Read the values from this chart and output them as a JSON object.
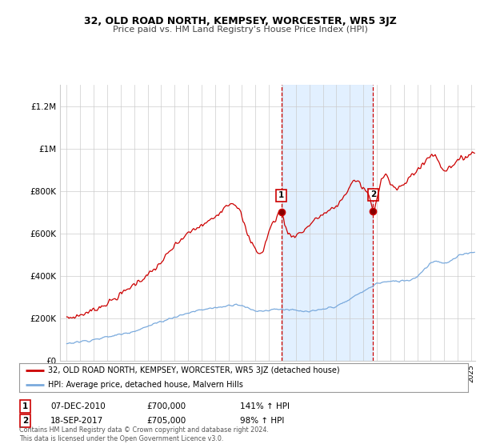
{
  "title": "32, OLD ROAD NORTH, KEMPSEY, WORCESTER, WR5 3JZ",
  "subtitle": "Price paid vs. HM Land Registry's House Price Index (HPI)",
  "ylabel_ticks": [
    "£0",
    "£200K",
    "£400K",
    "£600K",
    "£800K",
    "£1M",
    "£1.2M"
  ],
  "ytick_vals": [
    0,
    200000,
    400000,
    600000,
    800000,
    1000000,
    1200000
  ],
  "ylim": [
    0,
    1300000
  ],
  "xlim_start": 1994.5,
  "xlim_end": 2025.3,
  "shaded_region": [
    2010.92,
    2017.72
  ],
  "vline1_x": 2010.92,
  "vline2_x": 2017.72,
  "marker1_x": 2010.92,
  "marker1_y_red": 700000,
  "marker2_x": 2017.72,
  "marker2_y_red": 705000,
  "legend_label_red": "32, OLD ROAD NORTH, KEMPSEY, WORCESTER, WR5 3JZ (detached house)",
  "legend_label_blue": "HPI: Average price, detached house, Malvern Hills",
  "annotation1_label": "1",
  "annotation1_date": "07-DEC-2010",
  "annotation1_price": "£700,000",
  "annotation1_hpi": "141% ↑ HPI",
  "annotation2_label": "2",
  "annotation2_date": "18-SEP-2017",
  "annotation2_price": "£705,000",
  "annotation2_hpi": "98% ↑ HPI",
  "footer": "Contains HM Land Registry data © Crown copyright and database right 2024.\nThis data is licensed under the Open Government Licence v3.0.",
  "color_red": "#cc0000",
  "color_blue": "#7aaadd",
  "color_shade": "#ddeeff",
  "background_color": "#ffffff",
  "grid_color": "#cccccc"
}
